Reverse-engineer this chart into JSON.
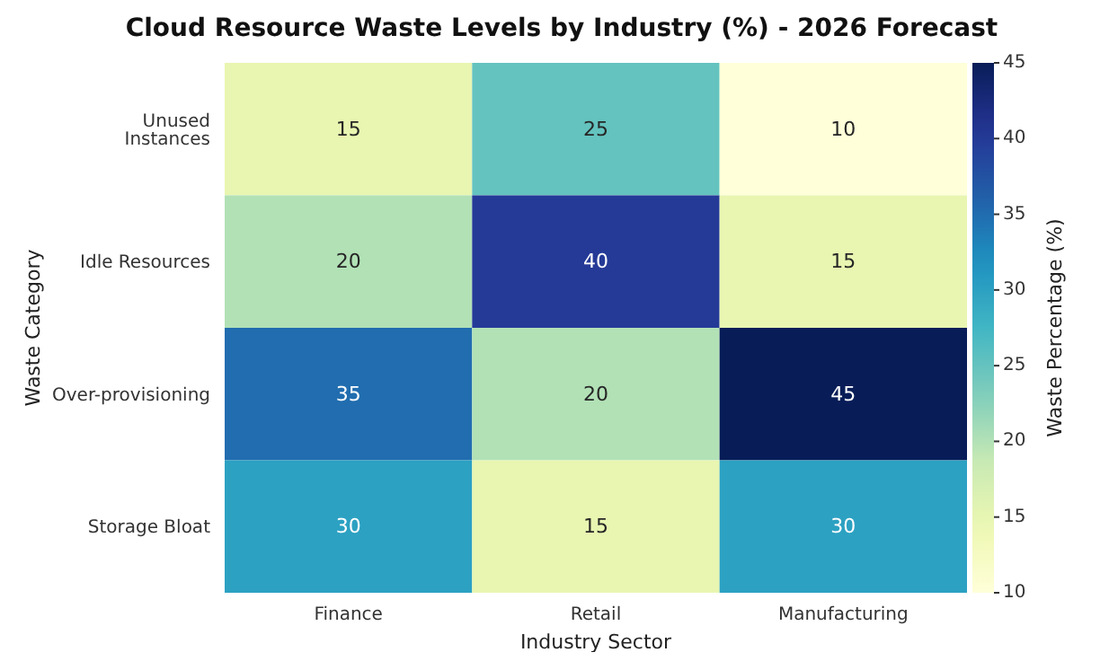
{
  "chart_data": {
    "type": "heatmap",
    "title": "Cloud Resource Waste Levels by Industry (%) - 2026 Forecast",
    "xlabel": "Industry Sector",
    "ylabel": "Waste Category",
    "clabel": "Waste Percentage (%)",
    "categories": [
      "Finance",
      "Retail",
      "Manufacturing"
    ],
    "y_categories": [
      "Unused Instances",
      "Idle Resources",
      "Over-provisioning",
      "Storage Bloat"
    ],
    "cells": [
      [
        15,
        25,
        10
      ],
      [
        20,
        40,
        15
      ],
      [
        35,
        20,
        45
      ],
      [
        30,
        15,
        30
      ]
    ],
    "clim": [
      10,
      45
    ],
    "cticks": [
      10,
      15,
      20,
      25,
      30,
      35,
      40,
      45
    ],
    "data_labels": true
  }
}
